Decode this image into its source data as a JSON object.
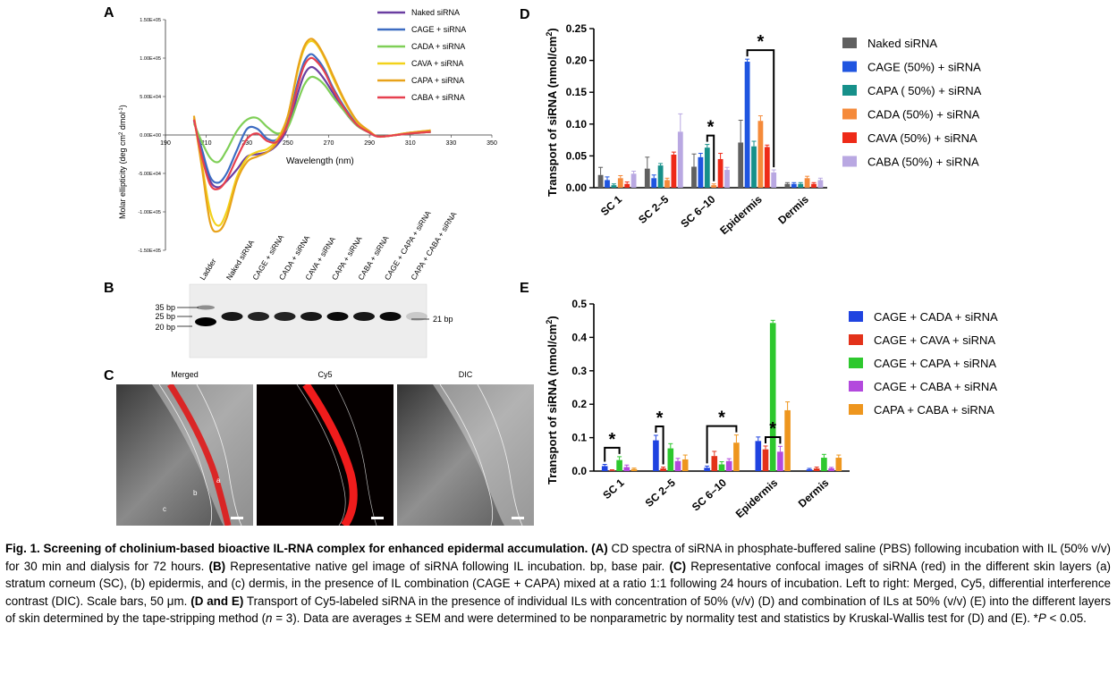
{
  "panels": {
    "A": "A",
    "B": "B",
    "C": "C",
    "D": "D",
    "E": "E"
  },
  "panel_a": {
    "chart_data": {
      "type": "line",
      "title": "",
      "xlabel": "Wavelength (nm)",
      "ylabel_parts": [
        "Molar ellipticity (deg cm",
        "2",
        " dmol",
        "-1",
        ")"
      ],
      "xlim": [
        190,
        350
      ],
      "ylim": [
        -150000,
        150000
      ],
      "x_ticks": [
        "190",
        "210",
        "230",
        "250",
        "270",
        "290",
        "310",
        "330",
        "350"
      ],
      "y_ticks": [
        "1.50E+05",
        "1.00E+05",
        "5.00E+04",
        "0.00E+00",
        "-5.00E+04",
        "-1.00E+05",
        "-1.50E+05"
      ],
      "y_tick_values": [
        150000,
        100000,
        50000,
        0,
        -50000,
        -100000,
        -150000
      ],
      "x_tick_values": [
        190,
        210,
        230,
        250,
        270,
        290,
        310,
        330,
        350
      ],
      "series": [
        {
          "name": "Naked siRNA",
          "color": "#6a3ea1",
          "x": [
            204,
            208,
            212,
            216,
            220,
            225,
            230,
            235,
            240,
            245,
            250,
            255,
            258,
            261,
            264,
            268,
            272,
            278,
            284,
            290,
            294,
            300,
            310,
            320
          ],
          "y": [
            20000,
            -25000,
            -60000,
            -68000,
            -60000,
            -45000,
            -28000,
            -25000,
            -22000,
            -12000,
            10000,
            55000,
            78000,
            88000,
            85000,
            72000,
            55000,
            30000,
            12000,
            3000,
            -2000,
            -1000,
            2000,
            4000
          ]
        },
        {
          "name": "CAGE + siRNA",
          "color": "#3d6cc2",
          "x": [
            204,
            208,
            212,
            216,
            220,
            225,
            230,
            235,
            240,
            245,
            250,
            255,
            258,
            261,
            264,
            268,
            272,
            278,
            284,
            290,
            294,
            300,
            310,
            320
          ],
          "y": [
            18000,
            -20000,
            -55000,
            -62000,
            -50000,
            -20000,
            8000,
            8000,
            -5000,
            -5000,
            20000,
            70000,
            95000,
            105000,
            100000,
            85000,
            62000,
            35000,
            14000,
            3000,
            -2000,
            -1000,
            3000,
            5000
          ]
        },
        {
          "name": "CADA + siRNA",
          "color": "#7fcf57",
          "x": [
            204,
            208,
            212,
            216,
            220,
            225,
            230,
            235,
            240,
            245,
            250,
            255,
            258,
            261,
            264,
            268,
            272,
            278,
            284,
            290,
            294,
            300,
            310,
            320
          ],
          "y": [
            15000,
            -10000,
            -30000,
            -35000,
            -20000,
            5000,
            20000,
            22000,
            10000,
            2000,
            10000,
            45000,
            65000,
            75000,
            74000,
            65000,
            50000,
            30000,
            12000,
            3000,
            -2000,
            -1000,
            2000,
            4000
          ]
        },
        {
          "name": "CAVA + siRNA",
          "color": "#f2d21b",
          "x": [
            204,
            208,
            212,
            216,
            220,
            225,
            230,
            235,
            240,
            245,
            250,
            255,
            258,
            261,
            264,
            268,
            272,
            278,
            284,
            290,
            294,
            300,
            310,
            320
          ],
          "y": [
            22000,
            -40000,
            -100000,
            -118000,
            -100000,
            -55000,
            -30000,
            -22000,
            -18000,
            -5000,
            25000,
            85000,
            112000,
            122000,
            118000,
            100000,
            75000,
            42000,
            17000,
            4000,
            -2000,
            -1000,
            3000,
            6000
          ]
        },
        {
          "name": "CAPA + siRNA",
          "color": "#e8a21a",
          "x": [
            204,
            208,
            212,
            216,
            220,
            225,
            230,
            235,
            240,
            245,
            250,
            255,
            258,
            261,
            264,
            268,
            272,
            278,
            284,
            290,
            294,
            300,
            310,
            320
          ],
          "y": [
            25000,
            -45000,
            -115000,
            -125000,
            -108000,
            -60000,
            -35000,
            -28000,
            -22000,
            -8000,
            25000,
            88000,
            115000,
            125000,
            120000,
            102000,
            78000,
            44000,
            18000,
            5000,
            -2000,
            -1000,
            3000,
            6000
          ]
        },
        {
          "name": "CABA + siRNA",
          "color": "#e6404f",
          "x": [
            204,
            208,
            212,
            216,
            220,
            225,
            230,
            235,
            240,
            245,
            250,
            255,
            258,
            261,
            264,
            268,
            272,
            278,
            284,
            290,
            294,
            300,
            310,
            320
          ],
          "y": [
            20000,
            -30000,
            -65000,
            -70000,
            -58000,
            -30000,
            -5000,
            2000,
            -8000,
            -8000,
            15000,
            65000,
            90000,
            100000,
            96000,
            82000,
            60000,
            33000,
            13000,
            3000,
            -2000,
            -1000,
            2000,
            4000
          ]
        }
      ]
    }
  },
  "panel_b": {
    "lane_labels": [
      "Ladder",
      "Naked siRNA",
      "CAGE + siRNA",
      "CADA + siRNA",
      "CAVA + siRNA",
      "CAPA + siRNA",
      "CABA + siRNA",
      "CAGE + CAPA + siRNA",
      "CAPA + CABA + siRNA"
    ],
    "ladder_labels": [
      "35 bp",
      "25 bp",
      "20 bp"
    ],
    "band_label": "21 bp",
    "band_intensity": [
      1.0,
      0.9,
      0.85,
      0.85,
      0.9,
      0.95,
      0.9,
      0.95,
      0.15
    ]
  },
  "panel_c": {
    "titles": [
      "Merged",
      "Cy5",
      "DIC"
    ],
    "layer_labels": [
      "a",
      "b",
      "c"
    ]
  },
  "panel_d": {
    "chart_data": {
      "type": "bar",
      "ylabel_parts": [
        "Transport of siRNA (nmol/cm",
        "2",
        ")"
      ],
      "ylim": [
        0,
        0.25
      ],
      "y_ticks": [
        "0.00",
        "0.05",
        "0.10",
        "0.15",
        "0.20",
        "0.25"
      ],
      "y_tick_values": [
        0,
        0.05,
        0.1,
        0.15,
        0.2,
        0.25
      ],
      "categories": [
        "SC 1",
        "SC 2–5",
        "SC 6–10",
        "Epidermis",
        "Dermis"
      ],
      "series": [
        {
          "name": "Naked siRNA",
          "color": "#606060",
          "values": [
            0.02,
            0.03,
            0.033,
            0.071,
            0.006
          ],
          "errors": [
            0.012,
            0.018,
            0.02,
            0.035,
            0.002
          ]
        },
        {
          "name": "CAGE (50%) + siRNA",
          "color": "#1f55e0",
          "values": [
            0.012,
            0.015,
            0.048,
            0.198,
            0.006
          ],
          "errors": [
            0.005,
            0.005,
            0.006,
            0.004,
            0.002
          ]
        },
        {
          "name": "CAPA ( 50%) + siRNA",
          "color": "#16908a",
          "values": [
            0.004,
            0.035,
            0.063,
            0.065,
            0.006
          ],
          "errors": [
            0.002,
            0.003,
            0.005,
            0.008,
            0.002
          ]
        },
        {
          "name": "CADA (50%) + siRNA",
          "color": "#f58a3a",
          "values": [
            0.015,
            0.012,
            0.004,
            0.105,
            0.015
          ],
          "errors": [
            0.004,
            0.003,
            0.002,
            0.008,
            0.003
          ]
        },
        {
          "name": "CAVA (50%) + siRNA",
          "color": "#ee2a18",
          "values": [
            0.006,
            0.052,
            0.045,
            0.064,
            0.006
          ],
          "errors": [
            0.003,
            0.004,
            0.009,
            0.003,
            0.002
          ]
        },
        {
          "name": "CABA (50%) + siRNA",
          "color": "#b9a8e2",
          "values": [
            0.022,
            0.088,
            0.028,
            0.024,
            0.012
          ],
          "errors": [
            0.004,
            0.028,
            0.004,
            0.004,
            0.003
          ]
        }
      ],
      "significance": [
        {
          "label": "*",
          "category": "SC 6–10"
        },
        {
          "label": "*",
          "category": "Epidermis"
        }
      ]
    }
  },
  "panel_e": {
    "chart_data": {
      "type": "bar",
      "ylabel_parts": [
        "Transport of siRNA (nmol/cm",
        "2",
        ")"
      ],
      "ylim": [
        0,
        0.5
      ],
      "y_ticks": [
        "0.0",
        "0.1",
        "0.2",
        "0.3",
        "0.4",
        "0.5"
      ],
      "y_tick_values": [
        0,
        0.1,
        0.2,
        0.3,
        0.4,
        0.5
      ],
      "categories": [
        "SC 1",
        "SC 2–5",
        "SC 6–10",
        "Epidermis",
        "Dermis"
      ],
      "series": [
        {
          "name": "CAGE + CADA + siRNA",
          "color": "#1f43e0",
          "values": [
            0.015,
            0.092,
            0.01,
            0.09,
            0.005
          ],
          "errors": [
            0.005,
            0.015,
            0.005,
            0.012,
            0.003
          ]
        },
        {
          "name": "CAGE + CAVA + siRNA",
          "color": "#e3321a",
          "values": [
            0.002,
            0.008,
            0.045,
            0.065,
            0.008
          ],
          "errors": [
            0.002,
            0.004,
            0.014,
            0.01,
            0.004
          ]
        },
        {
          "name": "CAGE + CAPA + siRNA",
          "color": "#2ec82e",
          "values": [
            0.033,
            0.068,
            0.02,
            0.443,
            0.04
          ],
          "errors": [
            0.01,
            0.014,
            0.008,
            0.008,
            0.01
          ]
        },
        {
          "name": "CAGE + CABA + siRNA",
          "color": "#b349dd",
          "values": [
            0.012,
            0.03,
            0.03,
            0.058,
            0.008
          ],
          "errors": [
            0.006,
            0.008,
            0.007,
            0.016,
            0.003
          ]
        },
        {
          "name": "CAPA + CABA + siRNA",
          "color": "#ee961e",
          "values": [
            0.006,
            0.035,
            0.085,
            0.182,
            0.04
          ],
          "errors": [
            0.003,
            0.013,
            0.023,
            0.025,
            0.008
          ]
        }
      ],
      "significance": [
        {
          "label": "*",
          "category": "SC 1"
        },
        {
          "label": "*",
          "category": "SC 2–5"
        },
        {
          "label": "*",
          "category": "SC 6–10"
        },
        {
          "label": "*",
          "category": "Epidermis"
        }
      ]
    }
  },
  "caption": {
    "title": "Fig. 1. Screening of cholinium-based bioactive IL-RNA complex for enhanced epidermal accumulation.",
    "pA": "(A)",
    "tA": " CD spectra of siRNA in phosphate-buffered saline (PBS) following incubation with IL (50% v/v) for 30 min and dialysis for 72 hours. ",
    "pB": "(B)",
    "tB": " Representative native gel image of siRNA following IL incubation. bp, base pair. ",
    "pC": "(C)",
    "tC": " Representative confocal images of siRNA (red) in the different skin layers (a) stratum corneum (SC), (b) epidermis, and (c) dermis, in the presence of IL combination (CAGE + CAPA) mixed at a ratio 1:1 following 24 hours of incubation. Left to right: Merged, Cy5, differential interference contrast (DIC). Scale bars, 50 μm. ",
    "pDE": "(D and E)",
    "tDE": " Transport of Cy5-labeled siRNA in the presence of individual ILs with concentration of 50% (v/v) (D) and combination of ILs at 50% (v/v) (E) into the different layers of skin determined by the tape-stripping method (",
    "n_italic": "n",
    "n_rest": " = 3). Data are averages ± SEM and were determined to be nonparametric by normality test and statistics by Kruskal-Wallis test for (D) and (E). *",
    "p_italic": "P",
    "p_rest": " < 0.05."
  }
}
